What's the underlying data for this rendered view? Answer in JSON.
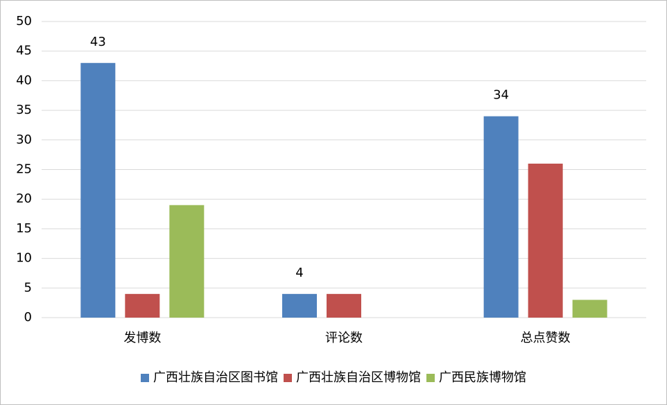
{
  "chart_data": {
    "type": "bar",
    "categories": [
      "发博数",
      "评论数",
      "总点赞数"
    ],
    "series": [
      {
        "name": "广西壮族自治区图书馆",
        "color": "#4f81bd",
        "values": [
          43,
          4,
          34
        ],
        "show_labels": true
      },
      {
        "name": "广西壮族自治区博物馆",
        "color": "#c0504d",
        "values": [
          4,
          4,
          26
        ],
        "show_labels": false
      },
      {
        "name": "广西民族博物馆",
        "color": "#9bbb59",
        "values": [
          19,
          0,
          3
        ],
        "show_labels": false
      }
    ],
    "ylim": [
      0,
      50
    ],
    "yticks": [
      0,
      5,
      10,
      15,
      20,
      25,
      30,
      35,
      40,
      45,
      50
    ],
    "grid": true,
    "legend": "bottom"
  }
}
